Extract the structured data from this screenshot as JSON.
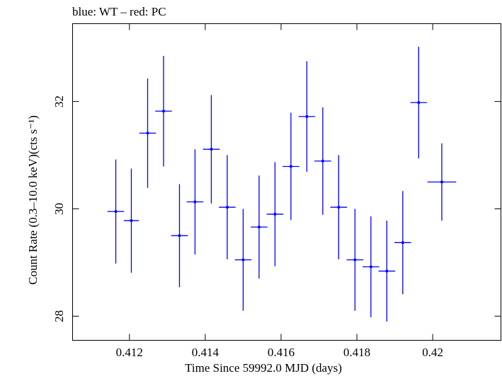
{
  "chart_data": {
    "type": "scatter",
    "title": "blue: WT – red: PC",
    "xlabel": "Time Since 59992.0 MJD (days)",
    "ylabel": "Count Rate (0.3–10.0 keV)(cts s⁻¹)",
    "xlim": [
      0.4105,
      0.4218
    ],
    "ylim": [
      27.55,
      33.45
    ],
    "x_ticks": [
      0.412,
      0.414,
      0.416,
      0.418,
      0.42
    ],
    "x_tick_labels": [
      "0.412",
      "0.414",
      "0.416",
      "0.418",
      "0.42"
    ],
    "y_ticks": [
      28,
      30,
      32
    ],
    "y_tick_labels": [
      "28",
      "30",
      "32"
    ],
    "grid": false,
    "series": [
      {
        "name": "WT",
        "color": "#0000ff",
        "points": [
          {
            "x": 0.41164,
            "y": 29.95,
            "xerr": 0.00022,
            "yerr": 0.97
          },
          {
            "x": 0.41205,
            "y": 29.78,
            "xerr": 0.0002,
            "yerr": 0.97
          },
          {
            "x": 0.41248,
            "y": 31.41,
            "xerr": 0.00022,
            "yerr": 1.02
          },
          {
            "x": 0.4129,
            "y": 31.82,
            "xerr": 0.00022,
            "yerr": 1.03
          },
          {
            "x": 0.41332,
            "y": 29.5,
            "xerr": 0.00022,
            "yerr": 0.96
          },
          {
            "x": 0.41373,
            "y": 30.13,
            "xerr": 0.00022,
            "yerr": 0.98
          },
          {
            "x": 0.41416,
            "y": 31.11,
            "xerr": 0.00022,
            "yerr": 1.01
          },
          {
            "x": 0.41458,
            "y": 30.03,
            "xerr": 0.00022,
            "yerr": 0.97
          },
          {
            "x": 0.415,
            "y": 29.05,
            "xerr": 0.00022,
            "yerr": 0.95
          },
          {
            "x": 0.41542,
            "y": 29.66,
            "xerr": 0.00022,
            "yerr": 0.96
          },
          {
            "x": 0.41584,
            "y": 29.9,
            "xerr": 0.00022,
            "yerr": 0.97
          },
          {
            "x": 0.41626,
            "y": 30.79,
            "xerr": 0.00022,
            "yerr": 1.0
          },
          {
            "x": 0.41668,
            "y": 31.72,
            "xerr": 0.00022,
            "yerr": 1.03
          },
          {
            "x": 0.4171,
            "y": 30.89,
            "xerr": 0.00022,
            "yerr": 1.0
          },
          {
            "x": 0.41752,
            "y": 30.03,
            "xerr": 0.00022,
            "yerr": 0.97
          },
          {
            "x": 0.41795,
            "y": 29.05,
            "xerr": 0.00022,
            "yerr": 0.95
          },
          {
            "x": 0.41837,
            "y": 28.92,
            "xerr": 0.00022,
            "yerr": 0.94
          },
          {
            "x": 0.41879,
            "y": 28.84,
            "xerr": 0.00022,
            "yerr": 0.94
          },
          {
            "x": 0.41921,
            "y": 29.37,
            "xerr": 0.00022,
            "yerr": 0.96
          },
          {
            "x": 0.41963,
            "y": 31.98,
            "xerr": 0.00022,
            "yerr": 1.04
          },
          {
            "x": 0.42024,
            "y": 30.5,
            "xerr": 0.00038,
            "yerr": 0.72
          }
        ]
      }
    ]
  }
}
